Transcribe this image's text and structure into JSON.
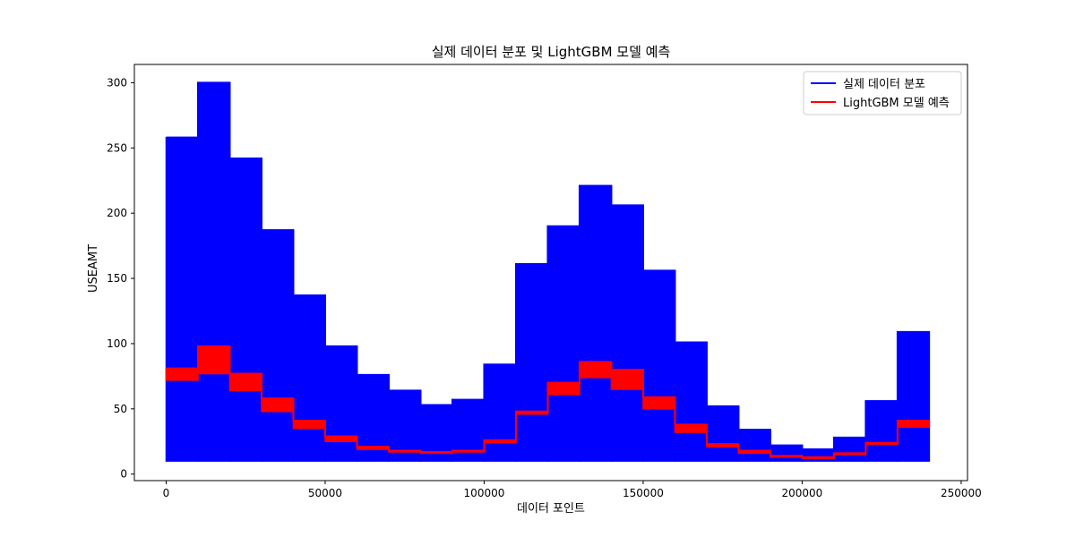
{
  "chart_data": {
    "type": "area",
    "title": "실제 데이터 분포 및 LightGBM 모델 예측",
    "xlabel": "데이터 포인트",
    "ylabel": "USEAMT",
    "xlim": [
      -10000,
      252000
    ],
    "ylim": [
      -5,
      314
    ],
    "xticks": [
      0,
      50000,
      100000,
      150000,
      200000,
      250000
    ],
    "xtick_labels": [
      "0",
      "50000",
      "100000",
      "150000",
      "200000",
      "250000"
    ],
    "yticks": [
      0,
      50,
      100,
      150,
      200,
      250,
      300
    ],
    "ytick_labels": [
      "0",
      "50",
      "100",
      "150",
      "200",
      "250",
      "300"
    ],
    "grid": false,
    "legend_position": "top-right",
    "series": [
      {
        "name": "실제 데이터 분포",
        "color": "#0000ff",
        "kind": "band",
        "segments": [
          {
            "x0": 0,
            "x1": 10000,
            "low": 10,
            "high": 258
          },
          {
            "x0": 10000,
            "x1": 20000,
            "low": 10,
            "high": 300
          },
          {
            "x0": 20000,
            "x1": 30000,
            "low": 10,
            "high": 242
          },
          {
            "x0": 30000,
            "x1": 40000,
            "low": 10,
            "high": 187
          },
          {
            "x0": 40000,
            "x1": 50000,
            "low": 10,
            "high": 137
          },
          {
            "x0": 50000,
            "x1": 60000,
            "low": 10,
            "high": 98
          },
          {
            "x0": 60000,
            "x1": 70000,
            "low": 10,
            "high": 76
          },
          {
            "x0": 70000,
            "x1": 80000,
            "low": 10,
            "high": 64
          },
          {
            "x0": 80000,
            "x1": 90000,
            "low": 10,
            "high": 53
          },
          {
            "x0": 90000,
            "x1": 100000,
            "low": 10,
            "high": 57
          },
          {
            "x0": 100000,
            "x1": 110000,
            "low": 10,
            "high": 84
          },
          {
            "x0": 110000,
            "x1": 120000,
            "low": 10,
            "high": 161
          },
          {
            "x0": 120000,
            "x1": 130000,
            "low": 10,
            "high": 190
          },
          {
            "x0": 130000,
            "x1": 140000,
            "low": 10,
            "high": 221
          },
          {
            "x0": 140000,
            "x1": 150000,
            "low": 10,
            "high": 206
          },
          {
            "x0": 150000,
            "x1": 160000,
            "low": 10,
            "high": 156
          },
          {
            "x0": 160000,
            "x1": 170000,
            "low": 10,
            "high": 101
          },
          {
            "x0": 170000,
            "x1": 180000,
            "low": 10,
            "high": 52
          },
          {
            "x0": 180000,
            "x1": 190000,
            "low": 10,
            "high": 34
          },
          {
            "x0": 190000,
            "x1": 200000,
            "low": 10,
            "high": 22
          },
          {
            "x0": 200000,
            "x1": 210000,
            "low": 10,
            "high": 19
          },
          {
            "x0": 210000,
            "x1": 220000,
            "low": 10,
            "high": 28
          },
          {
            "x0": 220000,
            "x1": 230000,
            "low": 10,
            "high": 56
          },
          {
            "x0": 230000,
            "x1": 240000,
            "low": 10,
            "high": 109
          }
        ]
      },
      {
        "name": "LightGBM 모델 예측",
        "color": "#ff0000",
        "kind": "band",
        "segments": [
          {
            "x0": 0,
            "x1": 10000,
            "low": 72,
            "high": 81
          },
          {
            "x0": 10000,
            "x1": 20000,
            "low": 77,
            "high": 98
          },
          {
            "x0": 20000,
            "x1": 30000,
            "low": 64,
            "high": 77
          },
          {
            "x0": 30000,
            "x1": 40000,
            "low": 48,
            "high": 58
          },
          {
            "x0": 40000,
            "x1": 50000,
            "low": 35,
            "high": 41
          },
          {
            "x0": 50000,
            "x1": 60000,
            "low": 25,
            "high": 29
          },
          {
            "x0": 60000,
            "x1": 70000,
            "low": 19,
            "high": 21
          },
          {
            "x0": 70000,
            "x1": 80000,
            "low": 17,
            "high": 18
          },
          {
            "x0": 80000,
            "x1": 90000,
            "low": 16,
            "high": 17
          },
          {
            "x0": 90000,
            "x1": 100000,
            "low": 17,
            "high": 18
          },
          {
            "x0": 100000,
            "x1": 110000,
            "low": 24,
            "high": 26
          },
          {
            "x0": 110000,
            "x1": 120000,
            "low": 46,
            "high": 48
          },
          {
            "x0": 120000,
            "x1": 130000,
            "low": 61,
            "high": 70
          },
          {
            "x0": 130000,
            "x1": 140000,
            "low": 74,
            "high": 86
          },
          {
            "x0": 140000,
            "x1": 150000,
            "low": 65,
            "high": 80
          },
          {
            "x0": 150000,
            "x1": 160000,
            "low": 50,
            "high": 59
          },
          {
            "x0": 160000,
            "x1": 170000,
            "low": 32,
            "high": 38
          },
          {
            "x0": 170000,
            "x1": 180000,
            "low": 21,
            "high": 23
          },
          {
            "x0": 180000,
            "x1": 190000,
            "low": 16,
            "high": 18
          },
          {
            "x0": 190000,
            "x1": 200000,
            "low": 13,
            "high": 14
          },
          {
            "x0": 200000,
            "x1": 210000,
            "low": 12,
            "high": 13
          },
          {
            "x0": 210000,
            "x1": 220000,
            "low": 15,
            "high": 16
          },
          {
            "x0": 220000,
            "x1": 230000,
            "low": 23,
            "high": 24
          },
          {
            "x0": 230000,
            "x1": 240000,
            "low": 36,
            "high": 41
          }
        ]
      }
    ]
  }
}
